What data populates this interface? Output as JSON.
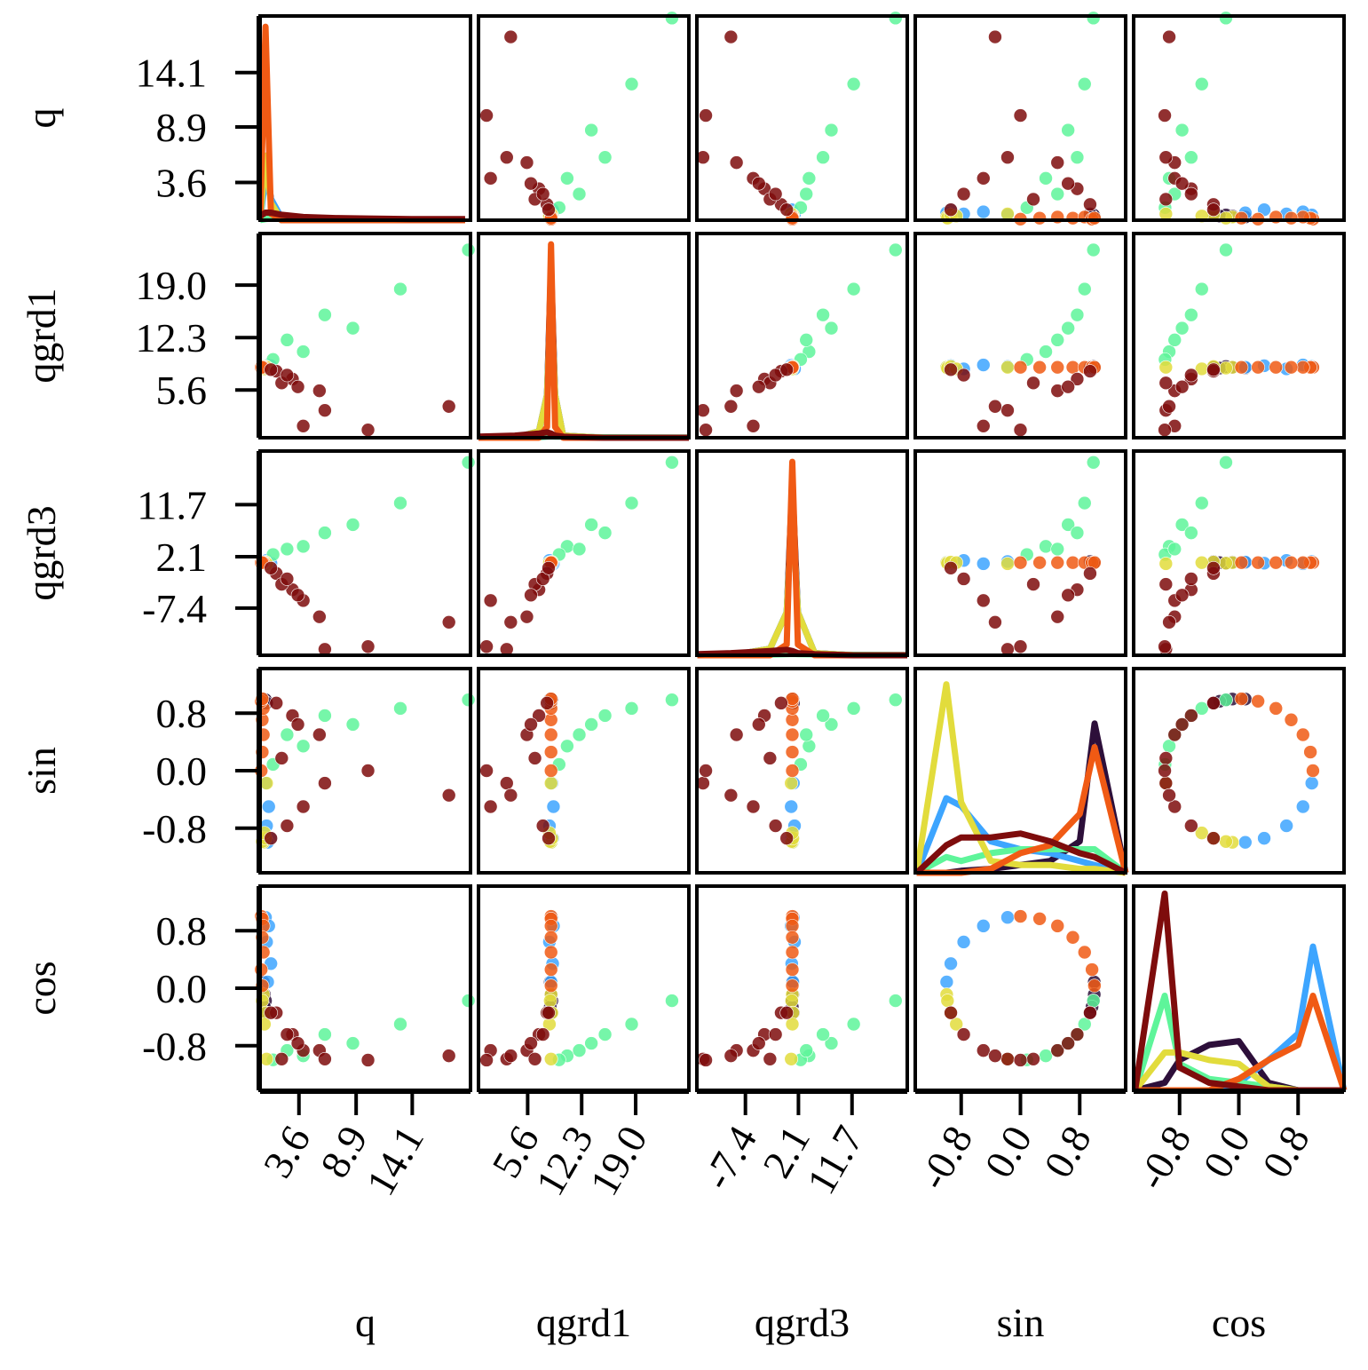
{
  "chart_data": {
    "type": "pairplot",
    "variables": [
      {
        "label": "q",
        "lim": [
          0,
          19.5
        ],
        "ticks": [
          3.6,
          8.9,
          14.1
        ],
        "kde_x": [
          0,
          0.5,
          1,
          2,
          4,
          7,
          10,
          14,
          19
        ],
        "kde_ylim": [
          0,
          9.5
        ],
        "kde": [
          [
            0,
            3,
            1,
            0,
            0,
            0,
            0,
            0,
            0
          ],
          [
            0,
            2,
            1,
            0.1,
            0,
            0,
            0,
            0,
            0
          ],
          [
            0,
            0.05,
            0.08,
            0.06,
            0.05,
            0.03,
            0.02,
            0.01,
            0.01
          ],
          [
            0,
            3,
            0.8,
            0,
            0,
            0,
            0,
            0,
            0
          ],
          [
            0,
            9,
            0.3,
            0,
            0,
            0,
            0,
            0,
            0
          ],
          [
            0.2,
            0.35,
            0.35,
            0.25,
            0.15,
            0.1,
            0.08,
            0.05,
            0.05
          ]
        ]
      },
      {
        "label": "qgrd1",
        "lim": [
          -0.5,
          25.6
        ],
        "ticks": [
          5.6,
          12.3,
          {
            "value": 19,
            "label": "19.0"
          }
        ],
        "kde_x": [
          -0.5,
          4,
          7,
          8,
          8.5,
          9,
          10,
          15,
          25.6
        ],
        "kde_ylim": [
          0,
          9.5
        ],
        "kde": [
          [
            0,
            0,
            0.3,
            2,
            8,
            2,
            0.1,
            0,
            0
          ],
          [
            0,
            0,
            0.3,
            2,
            7,
            2,
            0.1,
            0,
            0
          ],
          [
            0,
            0,
            0.02,
            0.05,
            0.06,
            0.05,
            0.05,
            0.02,
            0.01
          ],
          [
            0,
            0,
            0.3,
            2,
            7,
            2,
            0.1,
            0,
            0
          ],
          [
            0,
            0,
            0,
            0.5,
            9,
            0.5,
            0,
            0,
            0
          ],
          [
            0.05,
            0.1,
            0.2,
            0.25,
            0.2,
            0.1,
            0.05,
            0,
            0
          ]
        ]
      },
      {
        "label": "qgrd3",
        "lim": [
          -16.1,
          21.6
        ],
        "ticks": [
          -7.4,
          2.1,
          11.7
        ],
        "kde_x": [
          -16,
          -10,
          -3,
          0,
          1,
          2,
          5,
          12,
          21.6
        ],
        "kde_ylim": [
          0,
          9.5
        ],
        "kde": [
          [
            0,
            0,
            0.3,
            2,
            8,
            2,
            0.1,
            0,
            0
          ],
          [
            0,
            0,
            0.3,
            2,
            7,
            2,
            0.1,
            0,
            0
          ],
          [
            0,
            0.01,
            0.03,
            0.05,
            0.06,
            0.05,
            0.04,
            0.02,
            0.01
          ],
          [
            0,
            0,
            0.3,
            2,
            7,
            2,
            0.1,
            0,
            0
          ],
          [
            0,
            0,
            0,
            0.5,
            9,
            0.5,
            0,
            0,
            0
          ],
          [
            0.05,
            0.1,
            0.2,
            0.25,
            0.2,
            0.1,
            0.05,
            0,
            0
          ]
        ]
      },
      {
        "label": "sin",
        "lim": [
          -1.42,
          1.42
        ],
        "ticks": [
          -0.8,
          {
            "value": 0,
            "label": "0.0"
          },
          0.8
        ],
        "kde_x": [
          -1.4,
          -1,
          -0.8,
          -0.4,
          0,
          0.4,
          0.8,
          1,
          1.42
        ],
        "kde_ylim": [
          0,
          5.2
        ],
        "kde": [
          [
            0,
            0,
            0.05,
            0.1,
            0.2,
            0.3,
            0.8,
            3.8,
            0
          ],
          [
            0,
            1.9,
            1.7,
            0.8,
            0.6,
            0.5,
            0.3,
            0.2,
            0
          ],
          [
            0,
            0.4,
            0.3,
            0.5,
            0.6,
            0.6,
            0.6,
            0.6,
            0
          ],
          [
            0,
            4.8,
            1.8,
            0.3,
            0.2,
            0.2,
            0.1,
            0.1,
            0
          ],
          [
            0,
            0,
            0,
            0.1,
            0.5,
            0.7,
            1.5,
            3.2,
            0
          ],
          [
            0,
            0.7,
            0.9,
            0.9,
            1,
            0.8,
            0.5,
            0.4,
            0
          ]
        ]
      },
      {
        "label": "cos",
        "lim": [
          -1.42,
          1.42
        ],
        "ticks": [
          -0.8,
          {
            "value": 0,
            "label": "0.0"
          },
          0.8
        ],
        "kde_x": [
          -1.4,
          -1,
          -0.8,
          -0.4,
          0,
          0.4,
          0.8,
          1,
          1.42
        ],
        "kde_ylim": [
          0,
          5.4
        ],
        "kde": [
          [
            0,
            0.2,
            0.8,
            1.2,
            1.3,
            0.2,
            0,
            0,
            0
          ],
          [
            0,
            0,
            0,
            0,
            0.2,
            0.8,
            1.5,
            3.8,
            0
          ],
          [
            0,
            2.5,
            0.7,
            0.3,
            0.2,
            0.1,
            0,
            0,
            0
          ],
          [
            0,
            1,
            1,
            0.8,
            0.7,
            0.1,
            0,
            0,
            0
          ],
          [
            0,
            0,
            0,
            0,
            0.3,
            0.8,
            1.2,
            2.5,
            0
          ],
          [
            0,
            5.2,
            0.6,
            0.2,
            0.1,
            0,
            0,
            0,
            0
          ]
        ]
      }
    ],
    "series": [
      {
        "color": "#2d0f3a",
        "values": [
          [
            0.3,
            0.4,
            0.5,
            0.4,
            0.6
          ],
          [
            8.4,
            8.5,
            8.6,
            8.4,
            8.5
          ],
          [
            1.0,
            1.1,
            0.9,
            1.0,
            1.2
          ],
          [
            0.996,
            0.996,
            0.985,
            0.966,
            0.94
          ],
          [
            0.087,
            -0.087,
            -0.174,
            -0.259,
            -0.342
          ]
        ]
      },
      {
        "color": "#3da5ff",
        "values": [
          [
            0.5,
            0.8,
            0.6,
            1.0,
            0.7
          ],
          [
            8.6,
            8.8,
            8.3,
            8.7,
            8.5
          ],
          [
            1.2,
            0.8,
            1.4,
            0.9,
            1.1
          ],
          [
            -0.174,
            -0.5,
            -0.766,
            -0.94,
            -0.996
          ],
          [
            0.985,
            0.866,
            0.643,
            0.342,
            0.087
          ]
        ]
      },
      {
        "color": "#5ef59a",
        "values": [
          [
            19.3,
            13.0,
            8.6,
            4.0,
            1.2,
            6.0,
            2.5
          ],
          [
            23.5,
            18.5,
            13.5,
            10.5,
            9.5,
            15.2,
            12.0
          ],
          [
            19.5,
            12.0,
            8.0,
            4.0,
            2.5,
            6.5,
            3.5
          ],
          [
            0.985,
            0.866,
            0.643,
            0.342,
            0.087,
            0.766,
            0.5
          ],
          [
            -0.174,
            -0.5,
            -0.766,
            -0.94,
            -0.996,
            -0.643,
            -0.866
          ]
        ]
      },
      {
        "color": "#e2dc3c",
        "values": [
          [
            0.3,
            0.2,
            0.5,
            0.4,
            0.6
          ],
          [
            8.5,
            8.4,
            8.6,
            8.3,
            8.5
          ],
          [
            1.0,
            0.9,
            1.1,
            1.0,
            0.8
          ],
          [
            -0.996,
            -0.985,
            -0.94,
            -0.866,
            -0.174
          ],
          [
            -0.087,
            -0.174,
            -0.342,
            -0.5,
            -0.985
          ]
        ]
      },
      {
        "color": "#f05a14",
        "values": [
          [
            0.1,
            0.2,
            0.3,
            0.2,
            0.3,
            0.1,
            0.2
          ],
          [
            8.5,
            8.5,
            8.5,
            8.5,
            8.5,
            8.5,
            8.5
          ],
          [
            1.0,
            1.0,
            1.0,
            1.0,
            1.0,
            1.0,
            1.0
          ],
          [
            0,
            0.259,
            0.5,
            0.707,
            0.866,
            0.966,
            0.999
          ],
          [
            1,
            0.966,
            0.866,
            0.707,
            0.5,
            0.259,
            0.035
          ]
        ]
      },
      {
        "color": "#7e0c0c",
        "values": [
          [
            1.5,
            3.0,
            5.5,
            2.0,
            6.0,
            4.0,
            2.5,
            1.0,
            10.0,
            3.5,
            17.5
          ],
          [
            8.0,
            7.0,
            5.5,
            6.5,
            3.0,
            1.0,
            7.5,
            8.2,
            0.5,
            6.0,
            3.5
          ],
          [
            -1.0,
            -4.0,
            -9.0,
            -3.0,
            -15.0,
            -6.0,
            -2.0,
            0.0,
            -14.5,
            -5.0,
            -10.0
          ],
          [
            0.94,
            0.766,
            0.5,
            0.174,
            -0.174,
            -0.5,
            -0.766,
            -0.94,
            0,
            0.643,
            -0.342
          ],
          [
            -0.342,
            -0.643,
            -0.866,
            -0.985,
            -0.985,
            -0.866,
            -0.643,
            -0.342,
            -1,
            -0.766,
            -0.94
          ]
        ]
      }
    ]
  }
}
